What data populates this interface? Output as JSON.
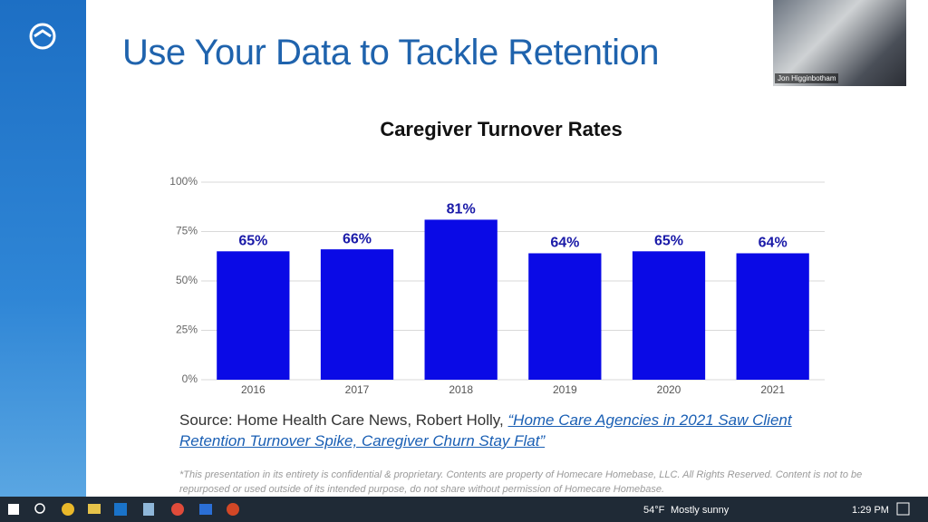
{
  "slide": {
    "title": "Use Your Data to Tackle Retention",
    "source_prefix": "Source: Home Health Care News, Robert Holly, ",
    "source_link": "“Home Care Agencies in 2021 Saw Client Retention Turnover Spike, Caregiver Churn Stay Flat”",
    "footnote": "*This presentation in its entirety is confidential & proprietary. Contents are property of Homecare Homebase, LLC. All Rights Reserved. Content is not to be repurposed or used outside of its intended purpose, do not share without permission of Homecare Homebase."
  },
  "chart_data": {
    "type": "bar",
    "title": "Caregiver Turnover Rates",
    "categories": [
      "2016",
      "2017",
      "2018",
      "2019",
      "2020",
      "2021"
    ],
    "values": [
      65,
      66,
      81,
      64,
      65,
      64
    ],
    "value_labels": [
      "65%",
      "66%",
      "81%",
      "64%",
      "65%",
      "64%"
    ],
    "color": "#0a0ae6",
    "ylim": [
      0,
      100
    ],
    "yticks": [
      {
        "value": 0,
        "label": "0%"
      },
      {
        "value": 25,
        "label": "25%"
      },
      {
        "value": 50,
        "label": "50%"
      },
      {
        "value": 75,
        "label": "75%"
      },
      {
        "value": 100,
        "label": "100%"
      }
    ],
    "grid": true
  },
  "webcam": {
    "name": "Jon Higginbotham"
  },
  "taskbar": {
    "temperature": "54°F",
    "weather": "Mostly sunny",
    "time": "1:29 PM"
  }
}
